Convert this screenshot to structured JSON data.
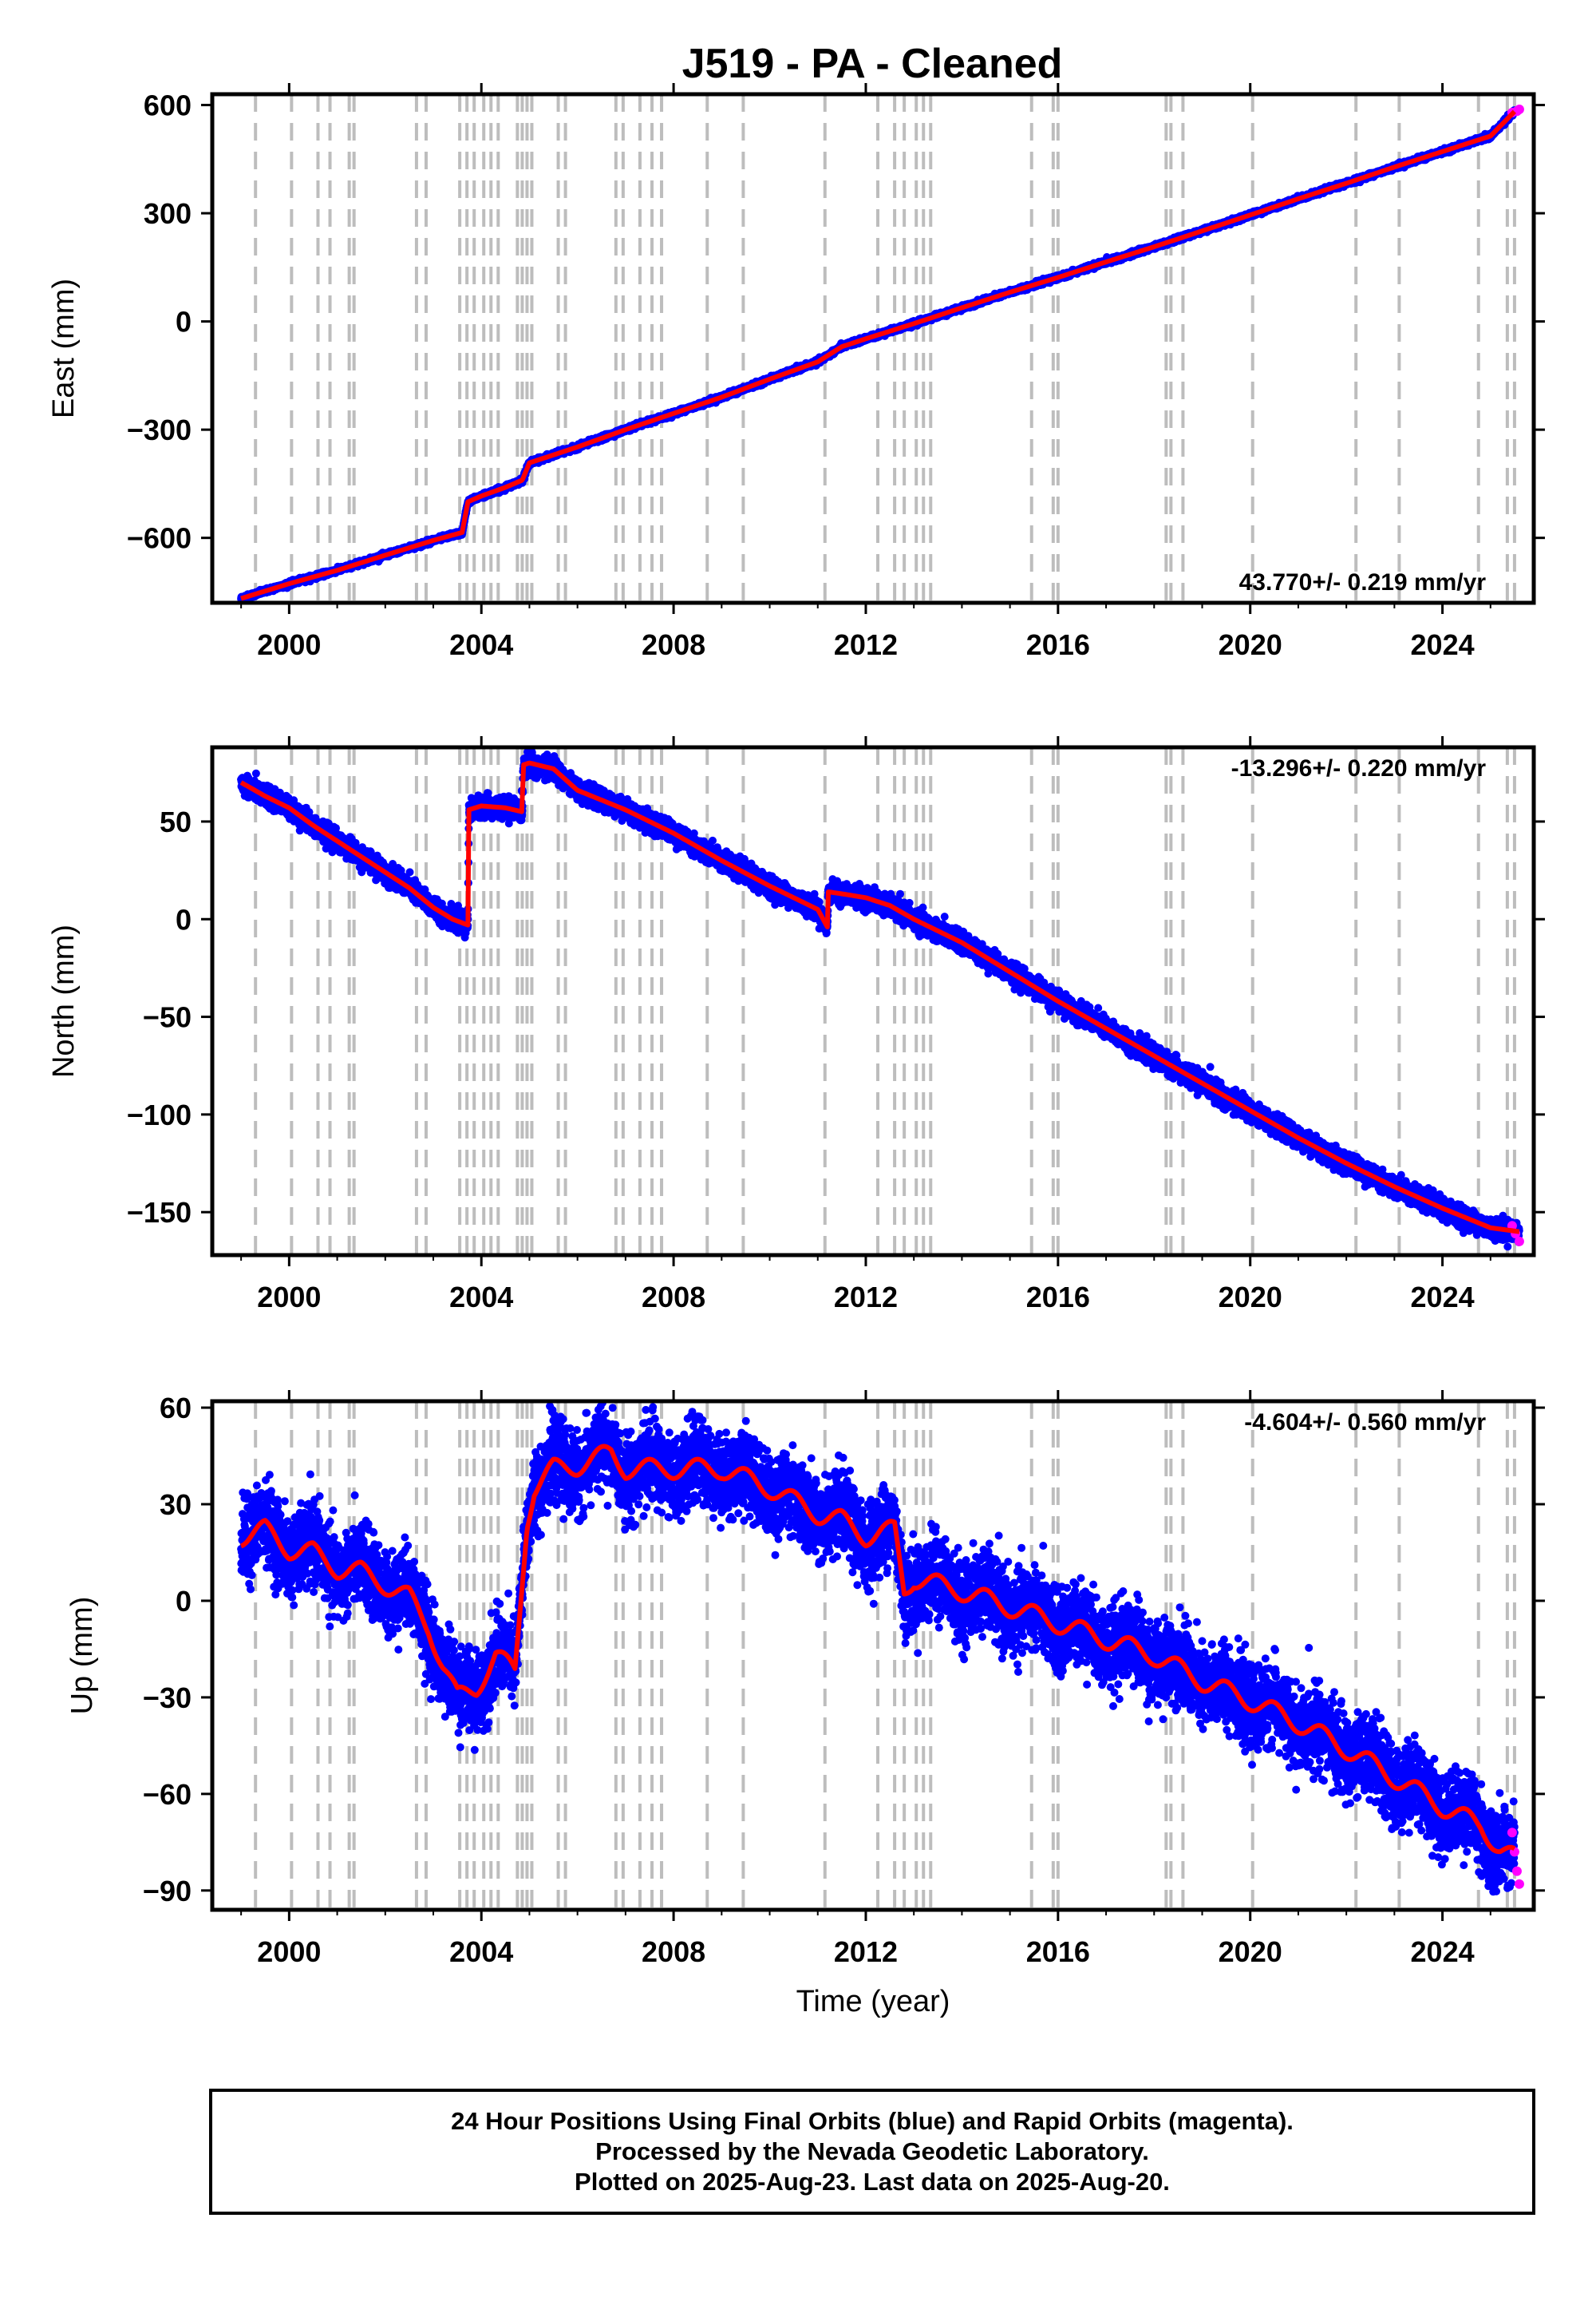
{
  "title": "J519  - PA - Cleaned",
  "footer": {
    "lines": [
      "24 Hour Positions Using Final Orbits (blue) and Rapid Orbits (magenta).",
      "Processed by the Nevada Geodetic Laboratory.",
      "Plotted on 2025-Aug-23. Last data on 2025-Aug-20."
    ]
  },
  "colors": {
    "final_orbits": "#0000ff",
    "rapid_orbits": "#ff00ff",
    "model_fit": "#ff0000",
    "event_lines": "#bdbdbd"
  },
  "chart_data": [
    {
      "type": "scatter",
      "id": "east",
      "ylabel": "East (mm)",
      "xlabel": "",
      "xlim": [
        1998.4,
        2025.9
      ],
      "ylim": [
        -780,
        630
      ],
      "xticks": [
        2000,
        2004,
        2008,
        2012,
        2016,
        2020,
        2024
      ],
      "yticks": [
        -600,
        -300,
        0,
        300,
        600
      ],
      "ytick_labels": [
        "−600",
        "−300",
        "0",
        "300",
        "600"
      ],
      "rate_label": "43.770+/- 0.219 mm/yr",
      "rate_position": "bottom-right",
      "grid": false,
      "series": [
        {
          "name": "Final Orbits",
          "color": "#0000ff",
          "x": [
            1999.0,
            2000.0,
            2001.0,
            2002.0,
            2003.0,
            2003.6,
            2003.72,
            2004.0,
            2004.5,
            2004.85,
            2005.0,
            2006.0,
            2007.0,
            2008.0,
            2009.0,
            2010.0,
            2011.0,
            2011.5,
            2012.0,
            2013.0,
            2014.0,
            2015.0,
            2016.0,
            2017.0,
            2018.0,
            2019.0,
            2020.0,
            2021.0,
            2022.0,
            2023.0,
            2024.0,
            2025.0,
            2025.5
          ],
          "y": [
            -768,
            -727,
            -690,
            -648,
            -607,
            -585,
            -500,
            -484,
            -460,
            -440,
            -392,
            -348,
            -300,
            -255,
            -210,
            -160,
            -112,
            -70,
            -48,
            -6,
            38,
            81,
            122,
            165,
            207,
            251,
            295,
            340,
            383,
            428,
            471,
            514,
            582
          ]
        },
        {
          "name": "Rapid Orbits",
          "color": "#ff00ff",
          "x": [
            2025.45,
            2025.55,
            2025.6
          ],
          "y": [
            579,
            583,
            588
          ]
        }
      ],
      "model": {
        "name": "Model",
        "color": "#ff0000",
        "x": [
          1999.0,
          2000.0,
          2001.0,
          2002.0,
          2003.0,
          2003.6,
          2003.72,
          2004.0,
          2004.5,
          2004.85,
          2005.0,
          2006.0,
          2007.0,
          2008.0,
          2009.0,
          2010.0,
          2011.0,
          2011.5,
          2012.0,
          2013.0,
          2014.0,
          2015.0,
          2016.0,
          2017.0,
          2018.0,
          2019.0,
          2020.0,
          2021.0,
          2022.0,
          2023.0,
          2024.0,
          2025.0,
          2025.5
        ],
        "y": [
          -768,
          -727,
          -690,
          -648,
          -607,
          -585,
          -500,
          -484,
          -460,
          -440,
          -392,
          -348,
          -300,
          -255,
          -210,
          -160,
          -112,
          -70,
          -48,
          -6,
          38,
          81,
          122,
          165,
          207,
          251,
          295,
          340,
          383,
          428,
          471,
          514,
          582
        ]
      },
      "noise_mm": 3
    },
    {
      "type": "scatter",
      "id": "north",
      "ylabel": "North (mm)",
      "xlabel": "",
      "xlim": [
        1998.4,
        2025.9
      ],
      "ylim": [
        -172,
        88
      ],
      "xticks": [
        2000,
        2004,
        2008,
        2012,
        2016,
        2020,
        2024
      ],
      "yticks": [
        -150,
        -100,
        -50,
        0,
        50
      ],
      "ytick_labels": [
        "−150",
        "−100",
        "−50",
        "0",
        "50"
      ],
      "rate_label": "-13.296+/- 0.220 mm/yr",
      "rate_position": "top-right",
      "grid": false,
      "series": [
        {
          "name": "Final Orbits",
          "color": "#0000ff",
          "x": [
            1999.0,
            1999.5,
            2000.0,
            2000.5,
            2001.0,
            2001.5,
            2002.0,
            2002.5,
            2003.0,
            2003.4,
            2003.72,
            2003.74,
            2004.0,
            2004.5,
            2004.85,
            2004.87,
            2005.0,
            2005.5,
            2006.0,
            2007.0,
            2008.0,
            2009.0,
            2010.0,
            2011.0,
            2011.2,
            2011.22,
            2011.5,
            2012.0,
            2012.5,
            2013.0,
            2014.0,
            2015.0,
            2016.0,
            2017.0,
            2018.0,
            2019.0,
            2020.0,
            2021.0,
            2022.0,
            2023.0,
            2024.0,
            2025.0,
            2025.6
          ],
          "y": [
            70,
            63,
            57,
            48,
            40,
            32,
            24,
            16,
            6,
            0,
            -3,
            56,
            58,
            57,
            55,
            79,
            80,
            77,
            66,
            56,
            44,
            30,
            17,
            5,
            -4,
            14,
            13,
            11,
            7,
            0,
            -12,
            -27,
            -42,
            -56,
            -70,
            -84,
            -98,
            -112,
            -125,
            -137,
            -148,
            -158,
            -160
          ]
        },
        {
          "name": "Rapid Orbits",
          "color": "#ff00ff",
          "x": [
            2025.45,
            2025.52,
            2025.6
          ],
          "y": [
            -157,
            -161,
            -165
          ]
        }
      ],
      "model": {
        "name": "Model",
        "color": "#ff0000",
        "x": [
          1999.0,
          1999.5,
          2000.0,
          2000.5,
          2001.0,
          2001.5,
          2002.0,
          2002.5,
          2003.0,
          2003.4,
          2003.72,
          2003.74,
          2004.0,
          2004.5,
          2004.85,
          2004.87,
          2005.0,
          2005.5,
          2006.0,
          2007.0,
          2008.0,
          2009.0,
          2010.0,
          2011.0,
          2011.2,
          2011.22,
          2011.5,
          2012.0,
          2012.5,
          2013.0,
          2014.0,
          2015.0,
          2016.0,
          2017.0,
          2018.0,
          2019.0,
          2020.0,
          2021.0,
          2022.0,
          2023.0,
          2024.0,
          2025.0,
          2025.6
        ],
        "y": [
          70,
          63,
          57,
          48,
          40,
          32,
          24,
          16,
          6,
          0,
          -3,
          56,
          58,
          57,
          55,
          79,
          80,
          77,
          66,
          56,
          44,
          30,
          17,
          5,
          -4,
          14,
          13,
          11,
          7,
          0,
          -12,
          -27,
          -42,
          -56,
          -70,
          -84,
          -98,
          -112,
          -125,
          -137,
          -148,
          -158,
          -160
        ]
      },
      "noise_mm": 2.5
    },
    {
      "type": "scatter",
      "id": "up",
      "ylabel": "Up (mm)",
      "xlabel": "Time (year)",
      "xlim": [
        1998.4,
        2025.9
      ],
      "ylim": [
        -96,
        62
      ],
      "xticks": [
        2000,
        2004,
        2008,
        2012,
        2016,
        2020,
        2024
      ],
      "yticks": [
        -90,
        -60,
        -30,
        0,
        30,
        60
      ],
      "ytick_labels": [
        "−90",
        "−60",
        "−30",
        "0",
        "30",
        "60"
      ],
      "rate_label": "-4.604+/- 0.560 mm/yr",
      "rate_position": "top-right",
      "grid": false,
      "series": [
        {
          "name": "Final Orbits",
          "color": "#0000ff",
          "x": [
            1999.0,
            1999.5,
            2000.0,
            2000.5,
            2001.0,
            2001.5,
            2002.0,
            2002.5,
            2002.9,
            2003.2,
            2003.5,
            2003.9,
            2004.3,
            2004.7,
            2004.95,
            2005.1,
            2005.5,
            2006.0,
            2006.7,
            2007.0,
            2008.0,
            2009.0,
            2010.0,
            2011.0,
            2011.5,
            2012.0,
            2012.6,
            2012.8,
            2013.0,
            2014.0,
            2015.0,
            2016.0,
            2017.0,
            2018.0,
            2019.0,
            2020.0,
            2021.0,
            2022.0,
            2023.0,
            2024.0,
            2024.8,
            2025.2,
            2025.5
          ],
          "y": [
            20,
            22,
            16,
            15,
            10,
            9,
            5,
            1,
            -8,
            -20,
            -30,
            -27,
            -17,
            -22,
            25,
            35,
            41,
            42,
            46,
            41,
            41,
            41,
            35,
            27,
            25,
            20,
            22,
            3,
            7,
            3,
            -2,
            -7,
            -12,
            -17,
            -25,
            -31,
            -38,
            -46,
            -55,
            -64,
            -70,
            -77,
            -80
          ]
        },
        {
          "name": "Rapid Orbits",
          "color": "#ff00ff",
          "x": [
            2025.45,
            2025.5,
            2025.55,
            2025.6
          ],
          "y": [
            -72,
            -78,
            -84,
            -88
          ]
        }
      ],
      "model": {
        "name": "Model",
        "color": "#ff0000",
        "x": [
          1999.0,
          1999.5,
          2000.0,
          2000.5,
          2001.0,
          2001.5,
          2002.0,
          2002.5,
          2002.9,
          2003.2,
          2003.5,
          2003.9,
          2004.3,
          2004.7,
          2004.95,
          2005.1,
          2005.5,
          2006.0,
          2006.7,
          2007.0,
          2008.0,
          2009.0,
          2010.0,
          2011.0,
          2011.5,
          2012.0,
          2012.6,
          2012.8,
          2013.0,
          2014.0,
          2015.0,
          2016.0,
          2017.0,
          2018.0,
          2019.0,
          2020.0,
          2021.0,
          2022.0,
          2023.0,
          2024.0,
          2024.8,
          2025.2,
          2025.5
        ],
        "y": [
          20,
          22,
          16,
          15,
          10,
          9,
          5,
          1,
          -8,
          -20,
          -30,
          -27,
          -17,
          -22,
          25,
          35,
          41,
          42,
          46,
          41,
          41,
          41,
          35,
          27,
          25,
          20,
          22,
          3,
          7,
          3,
          -2,
          -7,
          -12,
          -17,
          -25,
          -31,
          -38,
          -46,
          -55,
          -64,
          -70,
          -77,
          -80
        ]
      },
      "seasonal_mm": 3,
      "noise_mm": 6
    }
  ],
  "event_lines": [
    1999.3,
    2000.05,
    2000.6,
    2000.85,
    2001.25,
    2001.35,
    2002.65,
    2002.85,
    2003.55,
    2003.7,
    2003.85,
    2004.05,
    2004.2,
    2004.35,
    2004.75,
    2004.85,
    2004.95,
    2005.05,
    2005.6,
    2005.75,
    2006.8,
    2006.95,
    2007.3,
    2007.55,
    2007.75,
    2008.7,
    2009.45,
    2011.15,
    2012.25,
    2012.6,
    2012.8,
    2013.05,
    2013.2,
    2013.35,
    2015.45,
    2015.9,
    2016.0,
    2018.25,
    2018.35,
    2018.6,
    2020.05,
    2022.2,
    2023.1,
    2024.75,
    2025.35,
    2025.5
  ]
}
